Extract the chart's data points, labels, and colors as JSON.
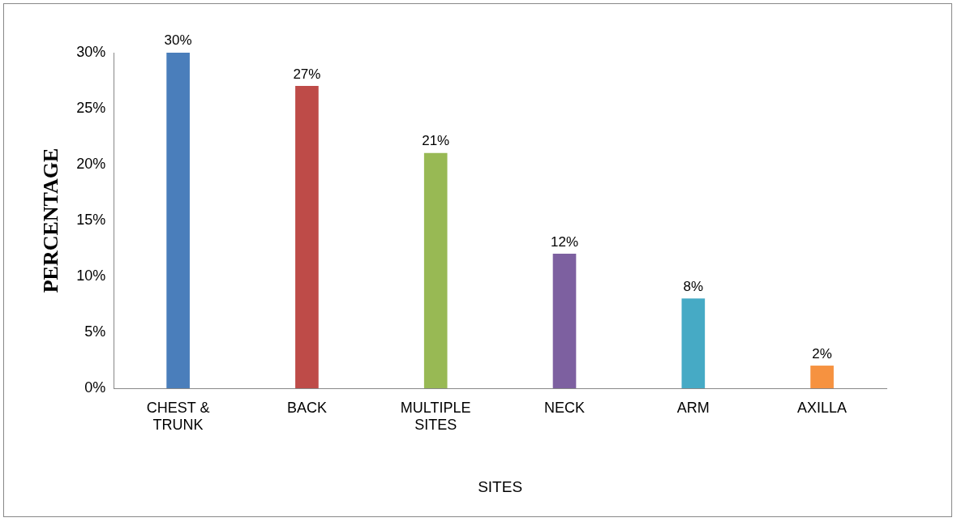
{
  "chart_data": {
    "type": "bar",
    "xlabel": "SITES",
    "ylabel": "PERCENTAGE",
    "categories": [
      "CHEST & TRUNK",
      "BACK",
      "MULTIPLE SITES",
      "NECK",
      "ARM",
      "AXILLA"
    ],
    "values": [
      30,
      27,
      21,
      12,
      8,
      2
    ],
    "colors": [
      "#4a7ebb",
      "#be4b48",
      "#98b954",
      "#7d60a0",
      "#46aac5",
      "#f69240"
    ],
    "value_labels": [
      "30%",
      "27%",
      "21%",
      "12%",
      "8%",
      "2%"
    ],
    "ylim": [
      0,
      30
    ],
    "yticks": [
      {
        "value": 0,
        "label": "0%"
      },
      {
        "value": 5,
        "label": "5%"
      },
      {
        "value": 10,
        "label": "10%"
      },
      {
        "value": 15,
        "label": "15%"
      },
      {
        "value": 20,
        "label": "20%"
      },
      {
        "value": 25,
        "label": "25%"
      },
      {
        "value": 30,
        "label": "30%"
      }
    ],
    "grid": false,
    "legend": false
  }
}
